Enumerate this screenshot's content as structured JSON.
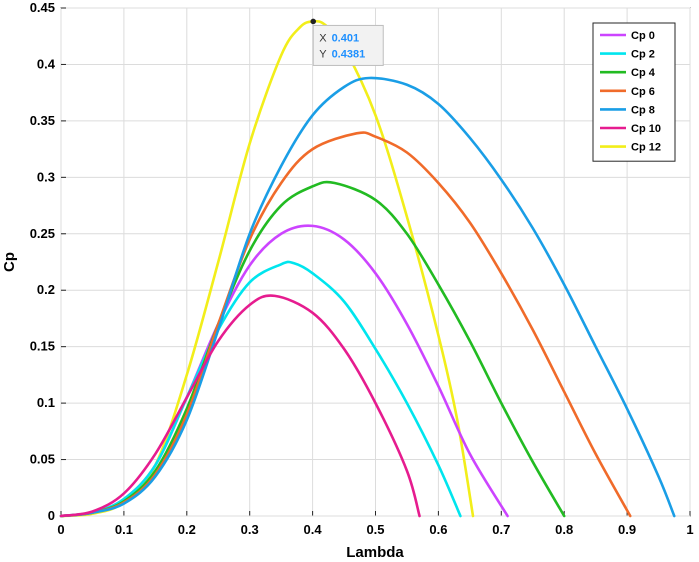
{
  "chart_data": {
    "type": "line",
    "xlabel": "Lambda",
    "ylabel": "Cp",
    "xlim": [
      0,
      1
    ],
    "ylim": [
      0,
      0.45
    ],
    "x_ticks": [
      "0",
      "0.1",
      "0.2",
      "0.3",
      "0.4",
      "0.5",
      "0.6",
      "0.7",
      "0.8",
      "0.9",
      "1"
    ],
    "y_ticks": [
      "0",
      "0.05",
      "0.1",
      "0.15",
      "0.2",
      "0.25",
      "0.3",
      "0.35",
      "0.4",
      "0.45"
    ],
    "grid": true,
    "legend_position": "top-right",
    "series": [
      {
        "name": "Cp 0",
        "color": "#cc44ff",
        "points": [
          [
            0,
            0
          ],
          [
            0.05,
            0.003
          ],
          [
            0.1,
            0.015
          ],
          [
            0.15,
            0.045
          ],
          [
            0.2,
            0.105
          ],
          [
            0.25,
            0.17
          ],
          [
            0.3,
            0.222
          ],
          [
            0.35,
            0.25
          ],
          [
            0.4,
            0.257
          ],
          [
            0.45,
            0.245
          ],
          [
            0.5,
            0.215
          ],
          [
            0.55,
            0.17
          ],
          [
            0.6,
            0.115
          ],
          [
            0.65,
            0.055
          ],
          [
            0.71,
            0
          ]
        ]
      },
      {
        "name": "Cp 2",
        "color": "#00e5ee",
        "points": [
          [
            0,
            0
          ],
          [
            0.05,
            0.003
          ],
          [
            0.1,
            0.015
          ],
          [
            0.15,
            0.045
          ],
          [
            0.2,
            0.105
          ],
          [
            0.25,
            0.165
          ],
          [
            0.3,
            0.207
          ],
          [
            0.35,
            0.223
          ],
          [
            0.37,
            0.224
          ],
          [
            0.4,
            0.215
          ],
          [
            0.45,
            0.19
          ],
          [
            0.5,
            0.148
          ],
          [
            0.55,
            0.1
          ],
          [
            0.6,
            0.045
          ],
          [
            0.635,
            0
          ]
        ]
      },
      {
        "name": "Cp 4",
        "color": "#22bb22",
        "points": [
          [
            0,
            0
          ],
          [
            0.05,
            0.003
          ],
          [
            0.1,
            0.013
          ],
          [
            0.15,
            0.04
          ],
          [
            0.2,
            0.095
          ],
          [
            0.25,
            0.17
          ],
          [
            0.3,
            0.235
          ],
          [
            0.35,
            0.275
          ],
          [
            0.4,
            0.292
          ],
          [
            0.435,
            0.295
          ],
          [
            0.5,
            0.28
          ],
          [
            0.55,
            0.25
          ],
          [
            0.6,
            0.205
          ],
          [
            0.65,
            0.155
          ],
          [
            0.7,
            0.1
          ],
          [
            0.75,
            0.048
          ],
          [
            0.8,
            0
          ]
        ]
      },
      {
        "name": "Cp 6",
        "color": "#f06b2a",
        "points": [
          [
            0,
            0
          ],
          [
            0.05,
            0.003
          ],
          [
            0.1,
            0.012
          ],
          [
            0.15,
            0.037
          ],
          [
            0.2,
            0.09
          ],
          [
            0.25,
            0.17
          ],
          [
            0.3,
            0.245
          ],
          [
            0.35,
            0.295
          ],
          [
            0.4,
            0.325
          ],
          [
            0.47,
            0.339
          ],
          [
            0.5,
            0.336
          ],
          [
            0.55,
            0.322
          ],
          [
            0.6,
            0.295
          ],
          [
            0.65,
            0.26
          ],
          [
            0.7,
            0.215
          ],
          [
            0.75,
            0.165
          ],
          [
            0.8,
            0.11
          ],
          [
            0.85,
            0.055
          ],
          [
            0.905,
            0
          ]
        ]
      },
      {
        "name": "Cp 8",
        "color": "#1a9ee6",
        "points": [
          [
            0,
            0
          ],
          [
            0.05,
            0.003
          ],
          [
            0.1,
            0.011
          ],
          [
            0.15,
            0.035
          ],
          [
            0.2,
            0.085
          ],
          [
            0.25,
            0.165
          ],
          [
            0.3,
            0.25
          ],
          [
            0.35,
            0.31
          ],
          [
            0.4,
            0.355
          ],
          [
            0.45,
            0.38
          ],
          [
            0.49,
            0.388
          ],
          [
            0.55,
            0.382
          ],
          [
            0.6,
            0.365
          ],
          [
            0.65,
            0.335
          ],
          [
            0.7,
            0.298
          ],
          [
            0.75,
            0.255
          ],
          [
            0.8,
            0.205
          ],
          [
            0.85,
            0.15
          ],
          [
            0.9,
            0.095
          ],
          [
            0.95,
            0.035
          ],
          [
            0.975,
            0
          ]
        ]
      },
      {
        "name": "Cp 10",
        "color": "#e61c8f",
        "points": [
          [
            0,
            0
          ],
          [
            0.05,
            0.004
          ],
          [
            0.1,
            0.02
          ],
          [
            0.15,
            0.055
          ],
          [
            0.2,
            0.105
          ],
          [
            0.25,
            0.155
          ],
          [
            0.3,
            0.187
          ],
          [
            0.34,
            0.195
          ],
          [
            0.4,
            0.18
          ],
          [
            0.45,
            0.148
          ],
          [
            0.5,
            0.1
          ],
          [
            0.55,
            0.04
          ],
          [
            0.57,
            0
          ]
        ]
      },
      {
        "name": "Cp 12",
        "color": "#f2ee1a",
        "points": [
          [
            0,
            0
          ],
          [
            0.05,
            0.002
          ],
          [
            0.1,
            0.012
          ],
          [
            0.15,
            0.045
          ],
          [
            0.2,
            0.125
          ],
          [
            0.25,
            0.225
          ],
          [
            0.3,
            0.33
          ],
          [
            0.35,
            0.408
          ],
          [
            0.38,
            0.433
          ],
          [
            0.401,
            0.4381
          ],
          [
            0.42,
            0.435
          ],
          [
            0.45,
            0.415
          ],
          [
            0.5,
            0.355
          ],
          [
            0.55,
            0.265
          ],
          [
            0.6,
            0.16
          ],
          [
            0.63,
            0.085
          ],
          [
            0.655,
            0
          ]
        ]
      }
    ],
    "datatip": {
      "x_label": "X",
      "x_value": "0.401",
      "y_label": "Y",
      "y_value": "0.4381",
      "x": 0.401,
      "y": 0.4381
    }
  }
}
